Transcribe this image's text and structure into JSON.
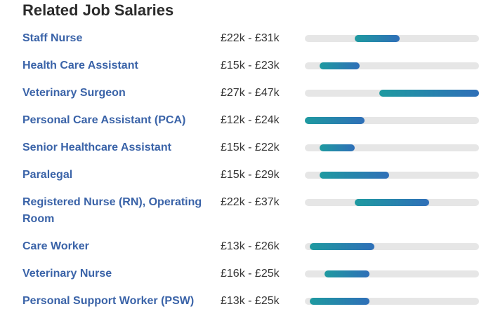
{
  "title": "Related Job Salaries",
  "scale": {
    "min_k": 12,
    "max_k": 47
  },
  "jobs": [
    {
      "name": "Staff Nurse",
      "range": "£22k - £31k",
      "low": 22,
      "high": 31
    },
    {
      "name": "Health Care Assistant",
      "range": "£15k - £23k",
      "low": 15,
      "high": 23
    },
    {
      "name": "Veterinary Surgeon",
      "range": "£27k - £47k",
      "low": 27,
      "high": 47
    },
    {
      "name": "Personal Care Assistant (PCA)",
      "range": "£12k - £24k",
      "low": 12,
      "high": 24
    },
    {
      "name": "Senior Healthcare Assistant",
      "range": "£15k - £22k",
      "low": 15,
      "high": 22
    },
    {
      "name": "Paralegal",
      "range": "£15k - £29k",
      "low": 15,
      "high": 29
    },
    {
      "name": "Registered Nurse (RN), Operating Room",
      "range": "£22k - £37k",
      "low": 22,
      "high": 37
    },
    {
      "name": "Care Worker",
      "range": "£13k - £26k",
      "low": 13,
      "high": 26
    },
    {
      "name": "Veterinary Nurse",
      "range": "£16k - £25k",
      "low": 16,
      "high": 25
    },
    {
      "name": "Personal Support Worker (PSW)",
      "range": "£13k - £25k",
      "low": 13,
      "high": 25
    }
  ]
}
